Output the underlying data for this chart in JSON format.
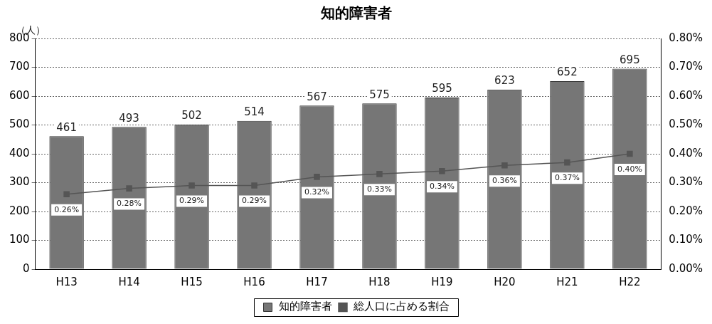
{
  "chart_data": {
    "type": "bar",
    "title": "知的障害者",
    "ylabel": "（人）",
    "categories": [
      "H13",
      "H14",
      "H15",
      "H16",
      "H17",
      "H18",
      "H19",
      "H20",
      "H21",
      "H22"
    ],
    "series": [
      {
        "name": "知的障害者",
        "color": "#767676",
        "values": [
          461,
          493,
          502,
          514,
          567,
          575,
          595,
          623,
          652,
          695
        ],
        "value_labels": [
          "461",
          "493",
          "502",
          "514",
          "567",
          "575",
          "595",
          "623",
          "652",
          "695"
        ]
      },
      {
        "name": "総人口に占める割合",
        "type": "line",
        "axis": "y2",
        "color": "#555555",
        "marker": "square",
        "values": [
          0.26,
          0.28,
          0.29,
          0.29,
          0.32,
          0.33,
          0.34,
          0.36,
          0.37,
          0.4
        ],
        "value_labels": [
          "0.26%",
          "0.28%",
          "0.29%",
          "0.29%",
          "0.32%",
          "0.33%",
          "0.34%",
          "0.36%",
          "0.37%",
          "0.40%"
        ]
      }
    ],
    "ylim": [
      0,
      800
    ],
    "yticks": [
      0,
      100,
      200,
      300,
      400,
      500,
      600,
      700,
      800
    ],
    "y2lim": [
      0,
      0.8
    ],
    "y2ticks": [
      {
        "value": 0,
        "label": "0.00%"
      },
      {
        "value": 0.1,
        "label": "0.10%"
      },
      {
        "value": 0.2,
        "label": "0.20%"
      },
      {
        "value": 0.3,
        "label": "0.30%"
      },
      {
        "value": 0.4,
        "label": "0.40%"
      },
      {
        "value": 0.5,
        "label": "0.50%"
      },
      {
        "value": 0.6,
        "label": "0.60%"
      },
      {
        "value": 0.7,
        "label": "0.70%"
      },
      {
        "value": 0.8,
        "label": "0.80%"
      }
    ],
    "grid": "y",
    "legend": "bottom"
  }
}
